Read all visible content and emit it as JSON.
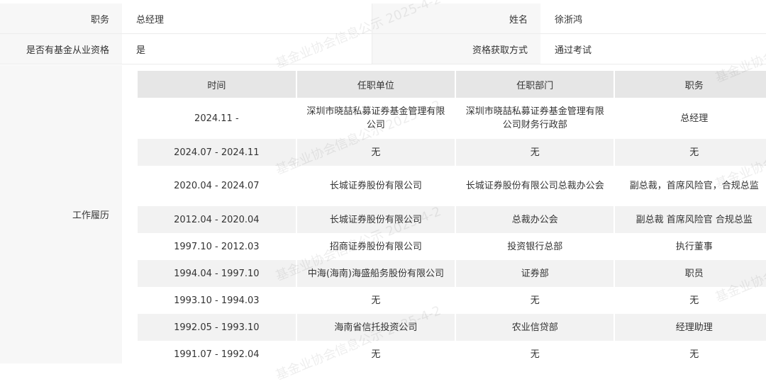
{
  "info": [
    {
      "label": "职务",
      "value": "总经理",
      "label2": "姓名",
      "value2": "徐浙鸿"
    },
    {
      "label": "是否有基金从业资格",
      "value": "是",
      "label2": "资格获取方式",
      "value2": "通过考试"
    }
  ],
  "work": {
    "label": "工作履历",
    "headers": [
      "时间",
      "任职单位",
      "任职部门",
      "职务"
    ],
    "rows": [
      [
        "2024.11 -",
        "深圳市晓喆私募证券基金管理有限公司",
        "深圳市晓喆私募证券基金管理有限公司财务行政部",
        "总经理"
      ],
      [
        "2024.07 - 2024.11",
        "无",
        "无",
        "无"
      ],
      [
        "2020.04 - 2024.07",
        "长城证券股份有限公司",
        "长城证券股份有限公司总裁办公会",
        "副总裁，首席风险官，合规总监"
      ],
      [
        "2012.04 - 2020.04",
        "长城证券股份有限公司",
        "总裁办公会",
        "副总裁 首席风险官 合规总监"
      ],
      [
        "1997.10 - 2012.03",
        "招商证券股份有限公司",
        "投资银行总部",
        "执行董事"
      ],
      [
        "1994.04 - 1997.10",
        "中海(海南)海盛船务股份有限公司",
        "证券部",
        "职员"
      ],
      [
        "1993.10 - 1994.03",
        "无",
        "无",
        "无"
      ],
      [
        "1992.05 - 1993.10",
        "海南省信托投资公司",
        "农业信贷部",
        "经理助理"
      ],
      [
        "1991.07 - 1992.04",
        "无",
        "无",
        "无"
      ]
    ]
  },
  "watermark": "基金业协会信息公示 2025-4-2"
}
